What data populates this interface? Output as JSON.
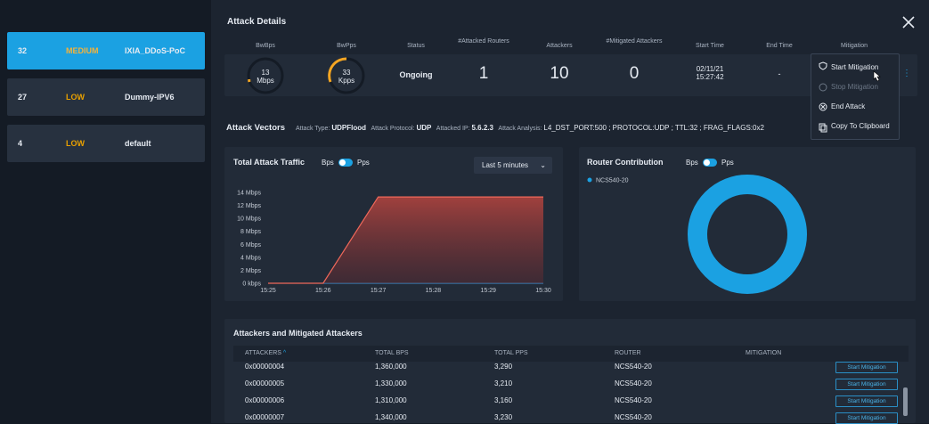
{
  "sidebar": [
    {
      "count": "32",
      "severity": "MEDIUM",
      "name": "IXIA_DDoS-PoC"
    },
    {
      "count": "27",
      "severity": "LOW",
      "name": "Dummy-IPV6"
    },
    {
      "count": "4",
      "severity": "LOW",
      "name": "default"
    }
  ],
  "header": {
    "title": "Attack Details"
  },
  "summary": {
    "labels": [
      "BwBps",
      "BwPps",
      "Status",
      "#Attacked Routers",
      "Attackers",
      "#Mitigated Attackers",
      "Start Time",
      "End Time",
      "Mitigation"
    ],
    "bwbps": {
      "value": "13",
      "unit": "Mbps"
    },
    "bwpps": {
      "value": "33",
      "unit": "Kpps"
    },
    "status": "Ongoing",
    "attacked_routers": "1",
    "attackers": "10",
    "mitigated_attackers": "0",
    "start_date": "02/11/21",
    "start_time": "15:27:42",
    "end_time": "-"
  },
  "mitigation_menu": [
    "Start Mitigation",
    "Stop Mitigation",
    "End Attack",
    "Copy To Clipboard"
  ],
  "attack_vectors": {
    "title": "Attack Vectors",
    "fields": [
      {
        "label": "Attack Type:",
        "value": "UDPFlood"
      },
      {
        "label": "Attack Protocol:",
        "value": "UDP"
      },
      {
        "label": "Attacked IP:",
        "value": "5.6.2.3"
      },
      {
        "label": "Attack Analysis:",
        "value": "L4_DST_PORT:500 ; PROTOCOL:UDP ; TTL:32 ; FRAG_FLAGS:0x2"
      }
    ]
  },
  "traffic_controls": {
    "toggle": [
      "Bps",
      "Pps"
    ],
    "range": "Last 5 minutes"
  },
  "router_controls": {
    "toggle": [
      "Bps",
      "Pps"
    ]
  },
  "chart_data": [
    {
      "type": "line",
      "title": "Total Attack Traffic",
      "categories": [
        "15:25",
        "15:26",
        "15:27",
        "15:28",
        "15:29",
        "15:30"
      ],
      "series": [
        {
          "name": "Traffic",
          "color": "#f0685a",
          "values": [
            0,
            0,
            13.3,
            13.3,
            13.3,
            13.3
          ]
        }
      ],
      "ylim": [
        0,
        14
      ],
      "yticks": [
        {
          "value": 0,
          "label": "0 kbps"
        },
        {
          "value": 2,
          "label": "2 Mbps"
        },
        {
          "value": 4,
          "label": "4 Mbps"
        },
        {
          "value": 6,
          "label": "6 Mbps"
        },
        {
          "value": 8,
          "label": "8 Mbps"
        },
        {
          "value": 10,
          "label": "10 Mbps"
        },
        {
          "value": 12,
          "label": "12 Mbps"
        },
        {
          "value": 14,
          "label": "14 Mbps"
        }
      ],
      "grid": false
    },
    {
      "type": "pie",
      "title": "Router Contribution",
      "categories": [
        "NCS540-20"
      ],
      "values": [
        100
      ],
      "colors": [
        "#1ba1e2"
      ],
      "donut": true
    }
  ],
  "table": {
    "title": "Attackers and Mitigated Attackers",
    "columns": [
      "ATTACKERS",
      "TOTAL BPS",
      "TOTAL PPS",
      "ROUTER",
      "MITIGATION"
    ],
    "rows": [
      [
        "0x00000004",
        "1,360,000",
        "3,290",
        "NCS540-20",
        "Start Mitigation"
      ],
      [
        "0x00000005",
        "1,330,000",
        "3,210",
        "NCS540-20",
        "Start Mitigation"
      ],
      [
        "0x00000006",
        "1,310,000",
        "3,160",
        "NCS540-20",
        "Start Mitigation"
      ],
      [
        "0x00000007",
        "1,340,000",
        "3,230",
        "NCS540-20",
        "Start Mitigation"
      ]
    ]
  }
}
